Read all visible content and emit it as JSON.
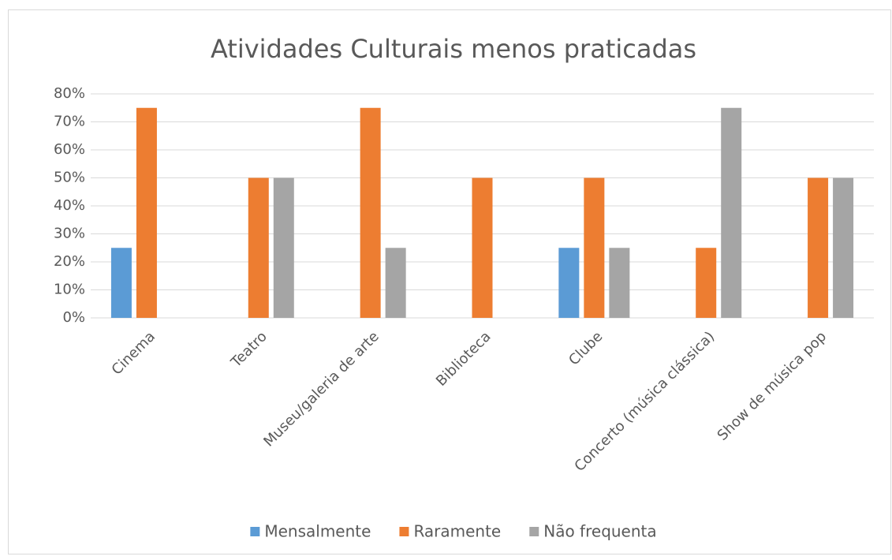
{
  "chart_data": {
    "type": "bar",
    "title": "Atividades Culturais menos praticadas",
    "categories": [
      "Cinema",
      "Teatro",
      "Museu/galeria de arte",
      "Biblioteca",
      "Clube",
      "Concerto (música clássica)",
      "Show de música pop"
    ],
    "series": [
      {
        "name": "Mensalmente",
        "color": "#5b9bd5",
        "values": [
          25,
          0,
          0,
          0,
          25,
          0,
          0
        ]
      },
      {
        "name": "Raramente",
        "color": "#ed7d31",
        "values": [
          75,
          50,
          75,
          50,
          50,
          25,
          50
        ]
      },
      {
        "name": "Não frequenta",
        "color": "#a5a5a5",
        "values": [
          0,
          50,
          25,
          0,
          25,
          75,
          50
        ]
      }
    ],
    "ylim": [
      0,
      80
    ],
    "yticks": [
      {
        "value": 0,
        "label": "0%"
      },
      {
        "value": 10,
        "label": "10%"
      },
      {
        "value": 20,
        "label": "20%"
      },
      {
        "value": 30,
        "label": "30%"
      },
      {
        "value": 40,
        "label": "40%"
      },
      {
        "value": 50,
        "label": "50%"
      },
      {
        "value": 60,
        "label": "60%"
      },
      {
        "value": 70,
        "label": "70%"
      },
      {
        "value": 80,
        "label": "80%"
      }
    ],
    "grid": true,
    "legend": "bottom"
  }
}
